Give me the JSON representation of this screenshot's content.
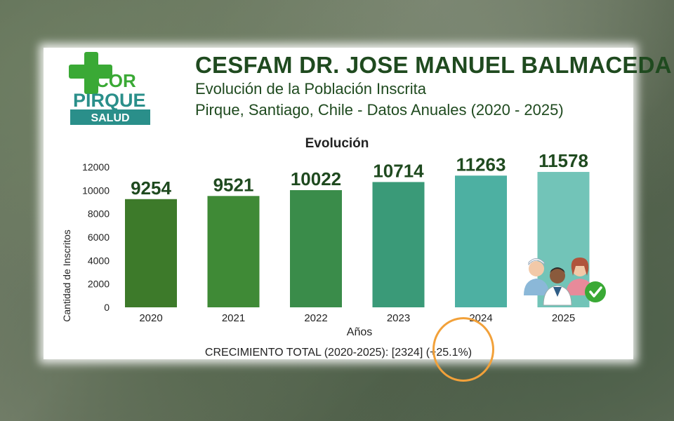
{
  "header": {
    "logo_top": "COR",
    "logo_mid": "PIRQUE",
    "logo_bottom": "SALUD",
    "title": "CESFAM DR. JOSE MANUEL BALMACEDA",
    "subtitle_1": "Evolución de la Población Inscrita",
    "subtitle_2": "Pirque, Santiago, Chile - Datos Anuales (2020 - 2025)"
  },
  "footer": {
    "growth_label": "CRECIMIENTO TOTAL (2020-2025): [2324] (+25.1%)"
  },
  "colors": {
    "brand_green": "#3aa935",
    "brand_teal": "#2a8f8a",
    "title_green": "#1f4a1f",
    "highlight_orange": "#f2a13a"
  },
  "icons": [
    "medical-staff-icon",
    "check-badge-icon",
    "medical-cross-logo"
  ],
  "chart_data": {
    "type": "bar",
    "title": "Evolución",
    "xlabel": "Años",
    "ylabel": "Cantidad de Inscritos",
    "categories": [
      "2020",
      "2021",
      "2022",
      "2023",
      "2024",
      "2025"
    ],
    "values": [
      9254,
      9521,
      10022,
      10714,
      11263,
      11578
    ],
    "data_labels": [
      "9254",
      "9521",
      "10022",
      "10714",
      "11263",
      "11578"
    ],
    "ylim": [
      0,
      12000
    ],
    "yticks": [
      0,
      2000,
      4000,
      6000,
      8000,
      10000,
      12000
    ],
    "bar_colors": [
      "#3d7a2a",
      "#3f8a36",
      "#3a8c4a",
      "#3a9a78",
      "#4db0a2",
      "#72c4b8"
    ],
    "grid": false,
    "legend": "none"
  }
}
